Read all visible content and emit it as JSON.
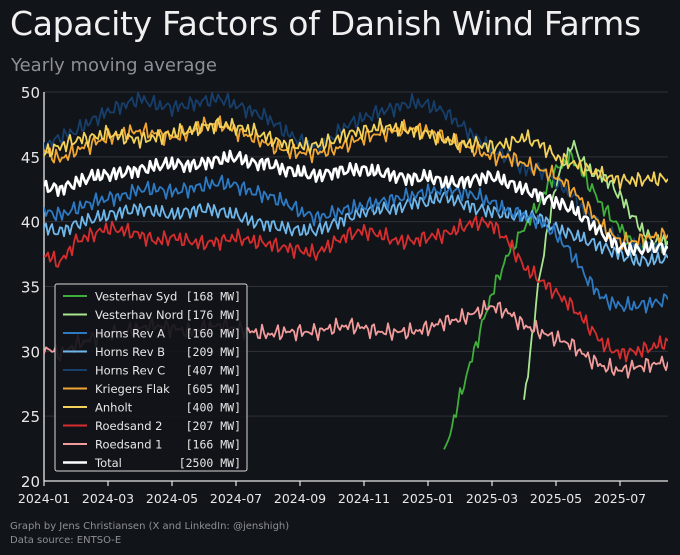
{
  "chart_data": {
    "type": "line",
    "title": "Capacity Factors of Danish Wind Farms",
    "subtitle": "Yearly moving average",
    "xlabel": "",
    "ylabel": "",
    "ylim": [
      20,
      50
    ],
    "yticks": [
      20,
      25,
      30,
      35,
      40,
      45,
      50
    ],
    "xlim": [
      "2024-01",
      "2025-08"
    ],
    "xticks": [
      "2024-01",
      "2024-03",
      "2024-05",
      "2024-07",
      "2024-09",
      "2024-11",
      "2025-01",
      "2025-03",
      "2025-05",
      "2025-07"
    ],
    "grid": true,
    "legend_position": "bottom-left",
    "series": [
      {
        "name": "Vesterhav Syd",
        "capacity": "[168 MW]",
        "color": "#3fae3a",
        "x": [
          12.5,
          13.0,
          13.5,
          14.0,
          14.5,
          15.0,
          15.5,
          16.0,
          16.5,
          17.0,
          17.5,
          18.0,
          18.5,
          19.0,
          19.5
        ],
        "y": [
          22.0,
          26.5,
          30.5,
          34.5,
          37.5,
          39.5,
          41.5,
          44.0,
          45.0,
          43.0,
          41.0,
          39.5,
          38.0,
          38.0,
          38.2
        ]
      },
      {
        "name": "Vesterhav Nord",
        "capacity": "[176 MW]",
        "color": "#a9e58f",
        "x": [
          15.0,
          15.5,
          16.0,
          16.5,
          17.0,
          17.5,
          18.0,
          18.5,
          19.0,
          19.5
        ],
        "y": [
          26.0,
          36.0,
          43.0,
          46.0,
          44.0,
          43.5,
          42.0,
          40.0,
          38.5,
          38.5
        ]
      },
      {
        "name": "Horns Rev A",
        "capacity": "[160 MW]",
        "color": "#2d79c2",
        "x": [
          8.5,
          9.0,
          9.5,
          10.0,
          10.5,
          11.0,
          11.5,
          12.0,
          12.5,
          13.0,
          13.5,
          14.0,
          14.5,
          15.0,
          15.5,
          16.0,
          16.5,
          17.0,
          17.5,
          18.0,
          18.5,
          19.0,
          19.5
        ],
        "y": [
          40.3,
          40.6,
          41.0,
          41.2,
          41.5,
          41.8,
          42.0,
          42.3,
          42.5,
          42.3,
          42.0,
          41.5,
          40.8,
          40.5,
          40.0,
          39.0,
          37.5,
          35.5,
          34.0,
          33.5,
          33.5,
          33.7,
          34.0
        ]
      },
      {
        "name": "Horns Rev B",
        "capacity": "[209 MW]",
        "color": "#6fb7ea",
        "x": [
          8.5,
          9.0,
          9.5,
          10.0,
          10.5,
          11.0,
          11.5,
          12.0,
          12.5,
          13.0,
          13.5,
          14.0,
          14.5,
          15.0,
          15.5,
          16.0,
          16.5,
          17.0,
          17.5,
          18.0,
          18.5,
          19.0,
          19.5
        ],
        "y": [
          39.3,
          39.8,
          40.3,
          40.8,
          41.0,
          41.0,
          41.5,
          41.5,
          42.0,
          41.5,
          41.0,
          40.8,
          40.5,
          40.5,
          40.3,
          39.5,
          39.0,
          38.5,
          38.0,
          37.5,
          37.0,
          37.0,
          37.2
        ]
      },
      {
        "name": "Horns Rev C",
        "capacity": "[407 MW]",
        "color": "#173f6b",
        "x": [
          8.5,
          9.0,
          9.5,
          10.0,
          10.5,
          11.0,
          11.5,
          12.0,
          12.5,
          13.0,
          13.5,
          14.0,
          14.5,
          15.0,
          15.5,
          16.0,
          16.5,
          17.0,
          17.5,
          18.0,
          18.5,
          19.0,
          19.5
        ],
        "y": [
          45.7,
          46.5,
          47.5,
          48.0,
          48.5,
          48.8,
          49.2,
          49.0,
          48.5,
          47.5,
          46.5,
          45.5,
          45.0,
          44.0,
          44.0,
          43.0,
          42.0,
          40.5,
          39.5,
          38.5,
          38.0,
          38.0,
          38.0
        ]
      },
      {
        "name": "Kriegers Flak",
        "capacity": "[605 MW]",
        "color": "#f0a532",
        "x": [
          8.5,
          9.0,
          9.5,
          10.0,
          10.5,
          11.0,
          11.5,
          12.0,
          12.5,
          13.0,
          13.5,
          14.0,
          14.5,
          15.0,
          15.5,
          16.0,
          16.5,
          17.0,
          17.5,
          18.0,
          18.5,
          19.0,
          19.5
        ],
        "y": [
          45.3,
          45.5,
          46.0,
          46.5,
          46.8,
          47.0,
          47.2,
          47.0,
          46.5,
          46.0,
          45.5,
          45.0,
          45.0,
          44.5,
          44.0,
          43.5,
          42.5,
          41.0,
          39.5,
          38.5,
          38.5,
          38.8,
          39.0
        ]
      },
      {
        "name": "Anholt",
        "capacity": "[400 MW]",
        "color": "#f2d25a",
        "x": [
          8.5,
          9.0,
          9.5,
          10.0,
          10.5,
          11.0,
          11.5,
          12.0,
          12.5,
          13.0,
          13.5,
          14.0,
          14.5,
          15.0,
          15.5,
          16.0,
          16.5,
          17.0,
          17.5,
          18.0,
          18.5,
          19.0,
          19.5
        ],
        "y": [
          45.9,
          46.2,
          46.8,
          47.0,
          47.3,
          47.2,
          47.0,
          46.8,
          46.3,
          46.0,
          46.0,
          45.8,
          46.0,
          46.5,
          46.0,
          45.0,
          44.5,
          44.0,
          43.5,
          43.2,
          43.2,
          43.3,
          43.3
        ]
      },
      {
        "name": "Roedsand 2",
        "capacity": "[207 MW]",
        "color": "#d62e2e",
        "x": [
          8.5,
          9.0,
          9.5,
          10.0,
          10.5,
          11.0,
          11.5,
          12.0,
          12.5,
          13.0,
          13.5,
          14.0,
          14.5,
          15.0,
          15.5,
          16.0,
          16.5,
          17.0,
          17.5,
          18.0,
          18.5,
          19.0,
          19.5
        ],
        "y": [
          37.5,
          38.3,
          39.0,
          39.3,
          39.0,
          38.5,
          38.5,
          38.8,
          39.0,
          39.5,
          40.0,
          39.8,
          38.5,
          36.5,
          35.5,
          34.5,
          33.5,
          32.0,
          30.5,
          29.8,
          30.0,
          30.3,
          30.8
        ]
      },
      {
        "name": "Roedsand 1",
        "capacity": "[166 MW]",
        "color": "#f29b9b",
        "x": [
          8.5,
          9.0,
          9.5,
          10.0,
          10.5,
          11.0,
          11.5,
          12.0,
          12.5,
          13.0,
          13.5,
          14.0,
          14.5,
          15.0,
          15.5,
          16.0,
          16.5,
          17.0,
          17.5,
          18.0,
          18.5,
          19.0,
          19.5
        ],
        "y": [
          31.5,
          31.8,
          32.0,
          31.8,
          31.5,
          31.5,
          31.5,
          31.8,
          32.3,
          32.5,
          33.0,
          33.5,
          33.0,
          32.0,
          31.5,
          31.0,
          30.5,
          29.5,
          28.8,
          28.5,
          28.8,
          29.0,
          29.2
        ]
      },
      {
        "name": "Total",
        "capacity": "[2500 MW]",
        "color": "#ffffff",
        "x": [
          0,
          0.5,
          1.0,
          1.5,
          2.0,
          2.5,
          3.0,
          3.5,
          4.0,
          4.5,
          5.0,
          5.5,
          6.0,
          6.5,
          7.0,
          7.5,
          8.0,
          8.5,
          9.0,
          9.5,
          10.0,
          10.5,
          11.0,
          11.5,
          12.0,
          12.5,
          13.0,
          13.5,
          14.0,
          14.5,
          15.0,
          15.5,
          16.0,
          16.5,
          17.0,
          17.5,
          18.0,
          18.5,
          19.0,
          19.5
        ],
        "y": [
          42.7,
          42.5,
          43.0,
          43.5,
          43.6,
          43.8,
          44.0,
          44.3,
          44.5,
          44.3,
          44.5,
          44.8,
          45.0,
          44.5,
          44.5,
          44.0,
          43.8,
          43.5,
          43.8,
          44.0,
          44.0,
          43.8,
          43.5,
          43.3,
          43.5,
          43.0,
          43.0,
          43.3,
          43.5,
          43.0,
          42.5,
          42.0,
          41.5,
          41.0,
          40.0,
          39.0,
          38.0,
          37.8,
          38.0,
          38.0
        ]
      }
    ],
    "early_segments": {
      "x": [
        0,
        0.5,
        1.0,
        1.5,
        2.0,
        2.5,
        3.0,
        3.5,
        4.0,
        4.5,
        5.0,
        5.5,
        6.0,
        6.5,
        7.0,
        7.5,
        8.0,
        8.5
      ],
      "Horns Rev A": [
        40.8,
        40.5,
        41.0,
        41.5,
        41.8,
        42.0,
        42.5,
        42.5,
        42.3,
        42.5,
        42.8,
        43.0,
        42.8,
        42.3,
        42.0,
        41.5,
        40.8,
        40.3
      ],
      "Horns Rev B": [
        39.5,
        39.2,
        39.8,
        40.2,
        40.5,
        40.8,
        41.0,
        40.8,
        40.5,
        40.8,
        41.0,
        40.8,
        40.5,
        40.0,
        39.8,
        39.5,
        39.3,
        39.3
      ],
      "Horns Rev C": [
        45.8,
        46.5,
        47.0,
        47.8,
        48.5,
        49.0,
        49.5,
        49.0,
        48.8,
        49.0,
        49.3,
        49.5,
        49.0,
        48.5,
        48.0,
        47.0,
        46.2,
        45.7
      ],
      "Kriegers Flak": [
        45.5,
        44.8,
        45.5,
        46.0,
        46.5,
        46.8,
        47.0,
        46.8,
        46.5,
        46.8,
        47.5,
        47.5,
        47.0,
        46.5,
        46.0,
        45.5,
        45.3,
        45.3
      ],
      "Anholt": [
        45.3,
        45.8,
        46.3,
        46.5,
        46.8,
        46.5,
        46.3,
        46.5,
        46.8,
        47.0,
        47.3,
        47.5,
        47.3,
        47.0,
        46.5,
        46.0,
        45.8,
        45.9
      ],
      "Roedsand 2": [
        37.5,
        36.8,
        38.5,
        39.0,
        39.5,
        39.3,
        39.0,
        38.5,
        38.8,
        38.5,
        38.3,
        38.5,
        38.8,
        38.5,
        38.3,
        38.0,
        37.8,
        37.5
      ],
      "Roedsand 1": [
        30.3,
        29.8,
        30.5,
        31.0,
        31.3,
        31.5,
        31.8,
        32.0,
        31.8,
        31.5,
        31.8,
        32.0,
        31.8,
        31.5,
        31.3,
        31.5,
        31.5,
        31.5
      ]
    }
  },
  "footer": {
    "credit": "Graph by Jens Christiansen (X and LinkedIn: @jenshigh)",
    "source": "Data source: ENTSO-E"
  }
}
